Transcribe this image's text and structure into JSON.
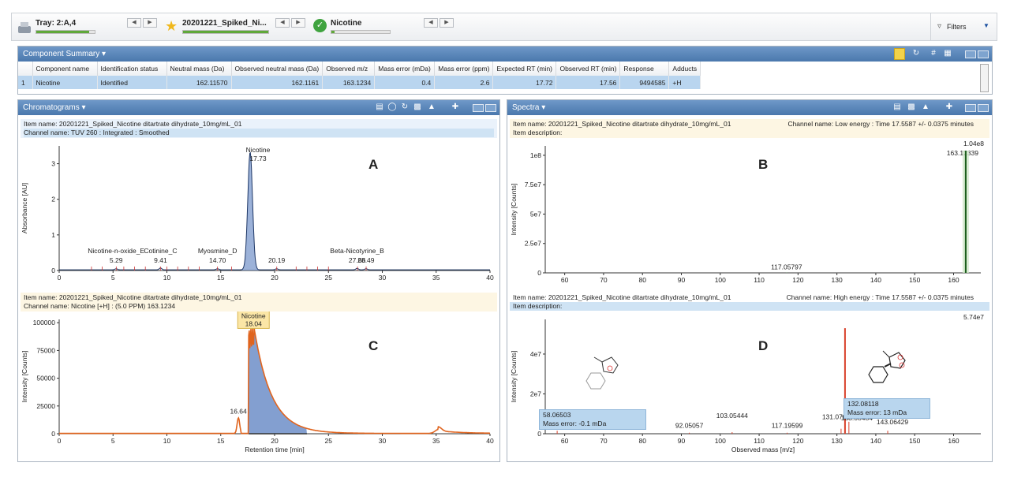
{
  "tray": {
    "item1": {
      "label": "Tray: 2:A,4",
      "progress": 0.9
    },
    "item2": {
      "label": "20201221_Spiked_Ni...",
      "progress": 1.0
    },
    "item3": {
      "label": "Nicotine",
      "progress": 0.05
    },
    "filters": "Filters"
  },
  "component_summary": {
    "title": "Component Summary",
    "columns": [
      "",
      "Component name",
      "Identification status",
      "Neutral mass (Da)",
      "Observed neutral mass (Da)",
      "Observed m/z",
      "Mass error (mDa)",
      "Mass error (ppm)",
      "Expected RT (min)",
      "Observed RT (min)",
      "Response",
      "Adducts"
    ],
    "rows": [
      [
        "1",
        "Nicotine",
        "Identified",
        "162.11570",
        "162.1161",
        "163.1234",
        "0.4",
        "2.6",
        "17.72",
        "17.56",
        "9494585",
        "+H"
      ]
    ]
  },
  "chromatograms": {
    "title": "Chromatograms",
    "A": {
      "item_name": "Item name: 20201221_Spiked_Nicotine ditartrate dihydrate_10mg/mL_01",
      "channel": "Channel name: TUV 260 : Integrated : Smoothed",
      "letter": "A",
      "ylabel": "Absorbance [AU]"
    },
    "C": {
      "item_name": "Item name: 20201221_Spiked_Nicotine ditartrate dihydrate_10mg/mL_01",
      "channel": "Channel name: Nicotine [+H] : (5.0 PPM) 163.1234",
      "letter": "C",
      "ylabel": "Intensity [Counts]",
      "xlabel": "Retention time [min]"
    }
  },
  "spectra": {
    "title": "Spectra",
    "B": {
      "item_name": "Item name: 20201221_Spiked_Nicotine ditartrate dihydrate_10mg/mL_01",
      "channel": "Channel name: Low energy : Time 17.5587 +/- 0.0375 minutes",
      "desc": "Item description:",
      "letter": "B",
      "ylabel": "Intensity [Counts]",
      "max": "1.04e8"
    },
    "D": {
      "item_name": "Item name: 20201221_Spiked_Nicotine ditartrate dihydrate_10mg/mL_01",
      "channel": "Channel name: High energy : Time 17.5587 +/- 0.0375 minutes",
      "desc": "Item description:",
      "letter": "D",
      "ylabel": "Intensity [Counts]",
      "xlabel": "Observed mass [m/z]",
      "max": "5.74e7",
      "label1_mass": "58.06503",
      "label1_err": "Mass error: -0.1 mDa",
      "label2_mass": "132.08118",
      "label2_err": "Mass error: 13 mDa"
    }
  },
  "chart_data": [
    {
      "type": "line",
      "id": "A",
      "x_range": [
        0,
        40
      ],
      "y_range": [
        0,
        3.5
      ],
      "xticks": [
        0,
        5,
        10,
        15,
        20,
        25,
        30,
        35,
        40
      ],
      "yticks": [
        0,
        1,
        2,
        3
      ],
      "peaks": [
        {
          "x": 17.73,
          "y": 3.3,
          "label": "Nicotine",
          "rt": "17.73"
        },
        {
          "x": 5.29,
          "y": 0.03,
          "label": "Nicotine-n-oxide_E",
          "rt": "5.29"
        },
        {
          "x": 9.41,
          "y": 0.05,
          "label": "Cotinine_C",
          "rt": "9.41"
        },
        {
          "x": 14.7,
          "y": 0.03,
          "label": "Myosmine_D",
          "rt": "14.70"
        },
        {
          "x": 20.19,
          "y": 0.03,
          "label": "",
          "rt": "20.19"
        },
        {
          "x": 27.66,
          "y": 0.04,
          "label": "Beta-Nicotyrine_B",
          "rt": "27.66"
        },
        {
          "x": 28.49,
          "y": 0.03,
          "label": "",
          "rt": "28.49"
        }
      ]
    },
    {
      "type": "bar",
      "id": "B",
      "x_range": [
        55,
        167
      ],
      "y_range": [
        0,
        108000000
      ],
      "xticks": [
        60,
        70,
        80,
        90,
        100,
        110,
        120,
        130,
        140,
        150,
        160
      ],
      "yticks": [
        0,
        25000000,
        50000000,
        75000000,
        100000000
      ],
      "yticklabels": [
        "0",
        "2.5e7",
        "5e7",
        "7.5e7",
        "1e8"
      ],
      "peaks": [
        {
          "x": 163.12339,
          "y": 104000000,
          "label": "163.12339"
        },
        {
          "x": 117.05797,
          "y": 300000,
          "label": "117.05797"
        }
      ]
    },
    {
      "type": "line",
      "id": "C",
      "x_range": [
        0,
        40
      ],
      "y_range": [
        0,
        103000
      ],
      "xticks": [
        0,
        5,
        10,
        15,
        20,
        25,
        30,
        35,
        40
      ],
      "yticks": [
        0,
        25000,
        50000,
        75000,
        100000
      ],
      "peaks": [
        {
          "x": 18.04,
          "y": 97000,
          "label": "Nicotine",
          "rt": "18.04"
        },
        {
          "x": 16.64,
          "y": 14000,
          "label": "",
          "rt": "16.64"
        }
      ]
    },
    {
      "type": "bar",
      "id": "D",
      "x_range": [
        55,
        167
      ],
      "y_range": [
        0,
        57400000
      ],
      "xticks": [
        60,
        70,
        80,
        90,
        100,
        110,
        120,
        130,
        140,
        150,
        160
      ],
      "yticks": [
        0,
        20000000,
        40000000
      ],
      "yticklabels": [
        "0",
        "2e7",
        "4e7"
      ],
      "peaks": [
        {
          "x": 132.08118,
          "y": 53000000,
          "label": ""
        },
        {
          "x": 58.06503,
          "y": 1500000,
          "label": ""
        },
        {
          "x": 92.05057,
          "y": 500000,
          "label": "92.05057"
        },
        {
          "x": 103.05444,
          "y": 800000,
          "label": "103.05444"
        },
        {
          "x": 117.19599,
          "y": 500000,
          "label": "117.19599"
        },
        {
          "x": 131.07007,
          "y": 2500000,
          "label": "131.07007"
        },
        {
          "x": 133.08484,
          "y": 6000000,
          "label": "133.08484"
        },
        {
          "x": 143.06429,
          "y": 1500000,
          "label": "143.06429"
        }
      ]
    }
  ],
  "colors": {
    "header": "#4a78ad",
    "highlight": "#b9d5ef",
    "trace_a": "#2a4a8c",
    "trace_c": "#e0641e",
    "spectrum_b": "#2f7a2f",
    "spectrum_d": "#d9402a"
  }
}
